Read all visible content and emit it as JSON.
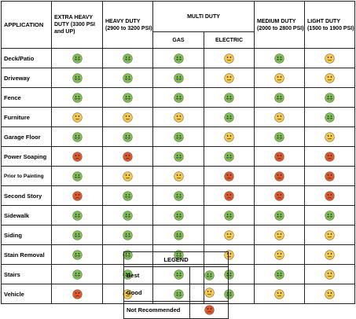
{
  "header": {
    "application": "APPLICATION",
    "extra_heavy": "EXTRA HEAVY DUTY (3300 PSI and UP)",
    "heavy": "HEAVY DUTY (2900 to 3200 PSI)",
    "multi": "MULTI DUTY",
    "gas": "GAS",
    "electric": "ELECTRIC",
    "medium": "MEDIUM DUTY (2000 to 2800 PSI)",
    "light": "LIGHT DUTY (1500 to 1900 PSI)"
  },
  "colors": {
    "best": "#7cc24a",
    "good": "#f7c948",
    "not_recommended": "#e0572a"
  },
  "rows": [
    {
      "label": "Deck/Patio",
      "ratings": [
        "best",
        "best",
        "best",
        "good",
        "best",
        "good"
      ]
    },
    {
      "label": "Driveway",
      "ratings": [
        "best",
        "best",
        "best",
        "good",
        "good",
        "good"
      ]
    },
    {
      "label": "Fence",
      "ratings": [
        "best",
        "best",
        "best",
        "best",
        "best",
        "best"
      ]
    },
    {
      "label": "Furniture",
      "ratings": [
        "good",
        "good",
        "good",
        "best",
        "good",
        "best"
      ]
    },
    {
      "label": "Garage Floor",
      "ratings": [
        "best",
        "best",
        "best",
        "good",
        "best",
        "good"
      ]
    },
    {
      "label": "Power Soaping",
      "ratings": [
        "not_recommended",
        "not_recommended",
        "best",
        "best",
        "not_recommended",
        "not_recommended"
      ]
    },
    {
      "label": "Prior to Painting",
      "ratings": [
        "best",
        "good",
        "good",
        "not_recommended",
        "not_recommended",
        "not_recommended"
      ]
    },
    {
      "label": "Second Story",
      "ratings": [
        "not_recommended",
        "best",
        "best",
        "not_recommended",
        "not_recommended",
        "not_recommended"
      ]
    },
    {
      "label": "Sidewalk",
      "ratings": [
        "best",
        "best",
        "best",
        "best",
        "best",
        "best"
      ]
    },
    {
      "label": "Siding",
      "ratings": [
        "best",
        "best",
        "best",
        "good",
        "good",
        "good"
      ]
    },
    {
      "label": "Stain Removal",
      "ratings": [
        "best",
        "best",
        "best",
        "good",
        "good",
        "good"
      ]
    },
    {
      "label": "Stairs",
      "ratings": [
        "best",
        "best",
        "best",
        "best",
        "best",
        "good"
      ]
    },
    {
      "label": "Vehicle",
      "ratings": [
        "not_recommended",
        "good",
        "best",
        "best",
        "good",
        "good"
      ]
    }
  ],
  "legend": {
    "title": "LEGEND",
    "items": [
      {
        "label": "Best",
        "rating": "best"
      },
      {
        "label": "Good",
        "rating": "good"
      },
      {
        "label": "Not Recommended",
        "rating": "not_recommended"
      }
    ]
  }
}
